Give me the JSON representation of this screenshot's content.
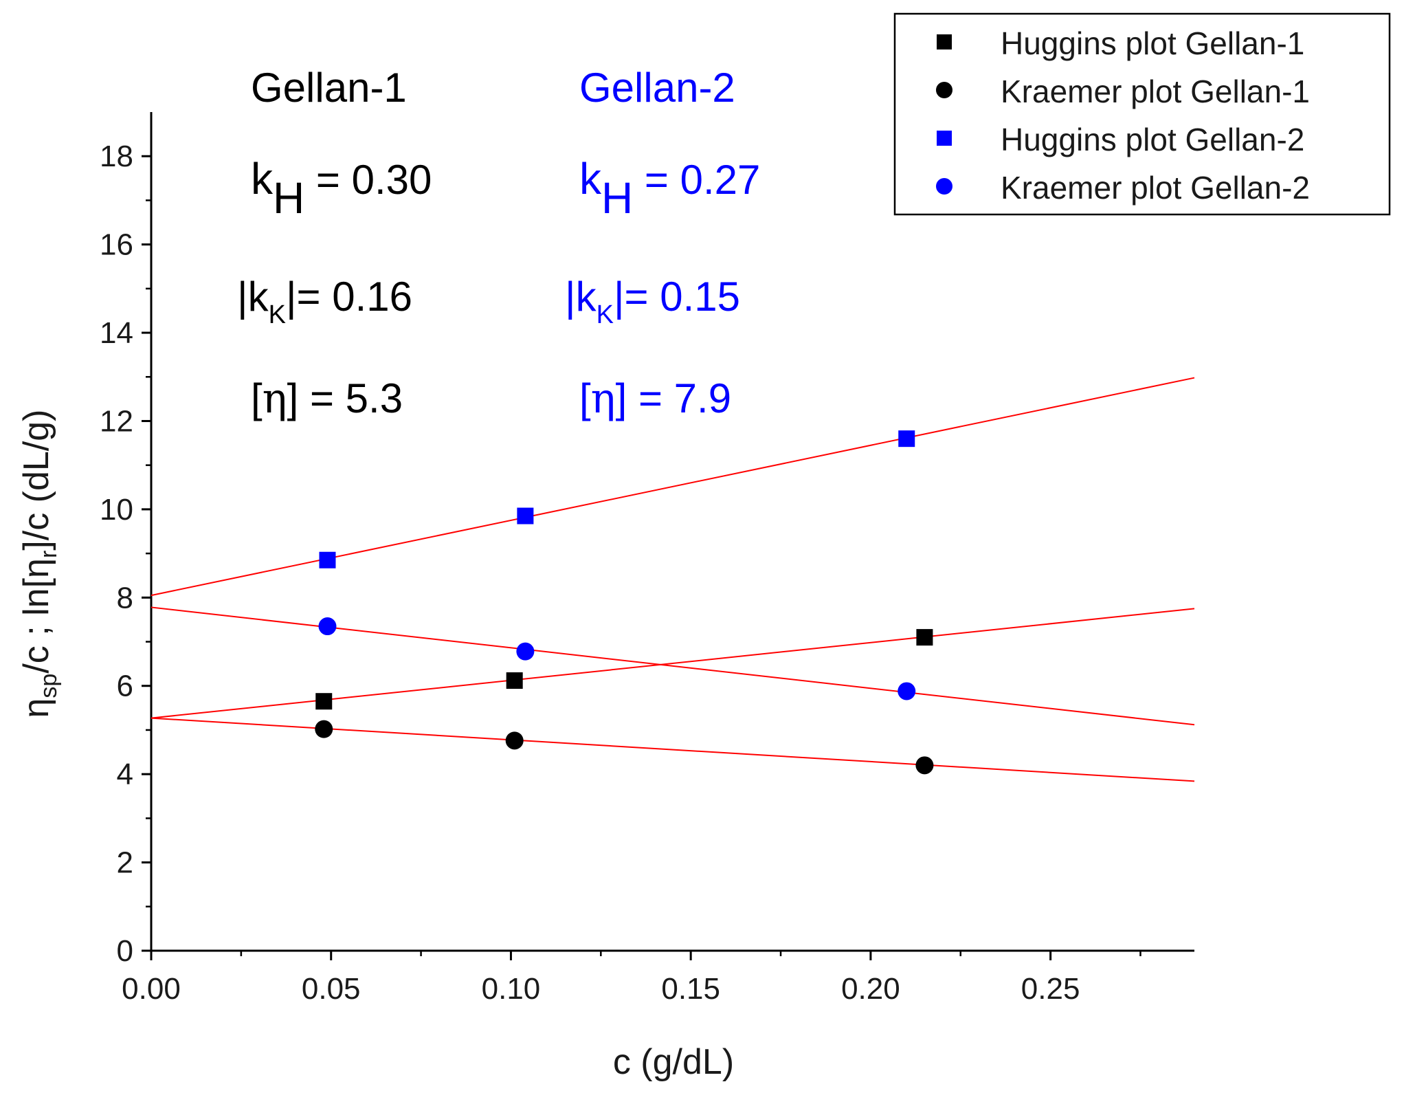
{
  "chart_data": {
    "type": "scatter",
    "xlabel": "c (g/dL)",
    "ylabel": {
      "eta": "η",
      "sp": "sp",
      "mid": "/c ; ln[",
      "eta2": "η",
      "r": "r",
      "end": "]/c (dL/g)"
    },
    "xlim": [
      0,
      0.29
    ],
    "ylim": [
      0,
      19
    ],
    "xticks": [
      0.0,
      0.05,
      0.1,
      0.15,
      0.2,
      0.25
    ],
    "xtick_labels": [
      "0.00",
      "0.05",
      "0.10",
      "0.15",
      "0.20",
      "0.25"
    ],
    "yticks": [
      0,
      2,
      4,
      6,
      8,
      10,
      12,
      14,
      16,
      18
    ],
    "ytick_labels": [
      "0",
      "2",
      "4",
      "6",
      "8",
      "10",
      "12",
      "14",
      "16",
      "18"
    ],
    "series": [
      {
        "name": "Huggins plot Gellan-1",
        "marker": "square",
        "color": "#000000",
        "points": [
          [
            0.048,
            5.65
          ],
          [
            0.101,
            6.12
          ],
          [
            0.215,
            7.1
          ]
        ]
      },
      {
        "name": "Kraemer plot Gellan-1",
        "marker": "circle",
        "color": "#000000",
        "points": [
          [
            0.048,
            5.02
          ],
          [
            0.101,
            4.76
          ],
          [
            0.215,
            4.2
          ]
        ]
      },
      {
        "name": "Huggins plot Gellan-2",
        "marker": "square",
        "color": "#0000ff",
        "points": [
          [
            0.049,
            8.85
          ],
          [
            0.104,
            9.85
          ],
          [
            0.21,
            11.6
          ]
        ]
      },
      {
        "name": "Kraemer plot Gellan-2",
        "marker": "circle",
        "color": "#0000ff",
        "points": [
          [
            0.049,
            7.35
          ],
          [
            0.104,
            6.78
          ],
          [
            0.21,
            5.88
          ]
        ]
      }
    ],
    "fit_lines": [
      {
        "color": "#ff0000",
        "x": [
          0,
          0.29
        ],
        "y": [
          5.27,
          7.75
        ]
      },
      {
        "color": "#ff0000",
        "x": [
          0,
          0.29
        ],
        "y": [
          5.27,
          3.84
        ]
      },
      {
        "color": "#ff0000",
        "x": [
          0,
          0.29
        ],
        "y": [
          8.05,
          12.98
        ]
      },
      {
        "color": "#ff0000",
        "x": [
          0,
          0.29
        ],
        "y": [
          7.78,
          5.12
        ]
      }
    ],
    "legend_position": "top-right",
    "annotations": {
      "gellan1": {
        "color": "#000000",
        "title": "Gellan-1",
        "kh_k": "k",
        "kh_sub": "H",
        "kh_val": " = 0.30",
        "kk_bar1": "|k",
        "kk_sub": "K",
        "kk_val": "|= 0.16",
        "eta_open": "[",
        "eta_sym": "η",
        "eta_val": "] = 5.3"
      },
      "gellan2": {
        "color": "#0000ff",
        "title": "Gellan-2",
        "kh_k": "k",
        "kh_sub": "H",
        "kh_val": " = 0.27",
        "kk_bar1": "|k",
        "kk_sub": "K",
        "kk_val": "|= 0.15",
        "eta_open": "[",
        "eta_sym": "η",
        "eta_val": "] = 7.9"
      }
    }
  }
}
